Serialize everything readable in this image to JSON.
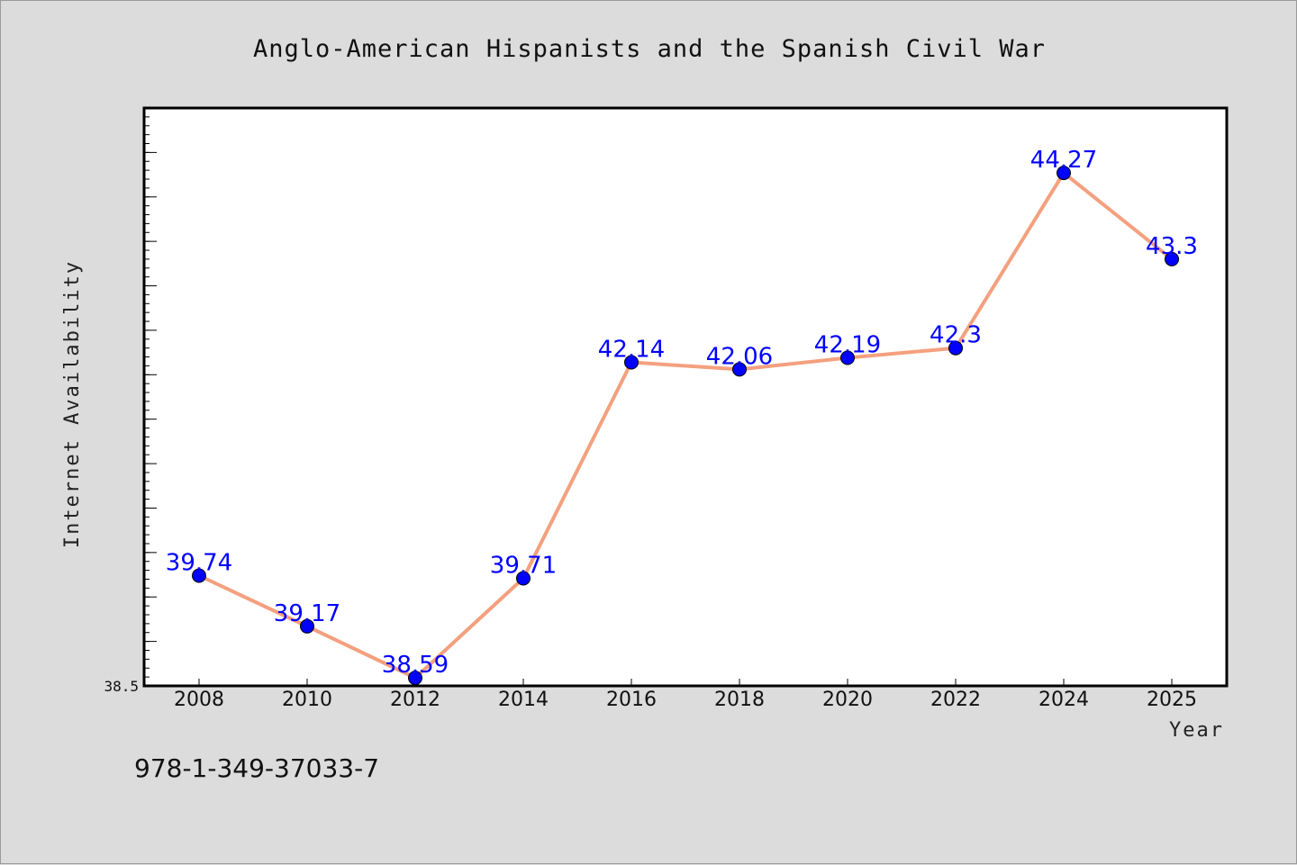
{
  "chart_data": {
    "type": "line",
    "title": "Anglo-American Hispanists and the Spanish Civil War",
    "xlabel": "Year",
    "ylabel": "Internet Availability",
    "categories": [
      "2008",
      "2010",
      "2012",
      "2014",
      "2016",
      "2018",
      "2020",
      "2022",
      "2024",
      "2025"
    ],
    "series": [
      {
        "values": [
          39.74,
          39.17,
          38.59,
          39.71,
          42.14,
          42.06,
          42.19,
          42.3,
          44.27,
          43.3
        ],
        "labels": [
          "39.74",
          "39.17",
          "38.59",
          "39.71",
          "42.14",
          "42.06",
          "42.19",
          "42.3",
          "44.27",
          "43.3"
        ]
      }
    ],
    "y_tick_labels": [
      "38.5"
    ],
    "ylim": [
      38.5,
      45.0
    ],
    "grid": false,
    "colors": {
      "line": "#f4a07e",
      "marker": "#0000ff",
      "data_label": "#0000ff"
    }
  },
  "footer": {
    "isbn": "978-1-349-37033-7"
  }
}
